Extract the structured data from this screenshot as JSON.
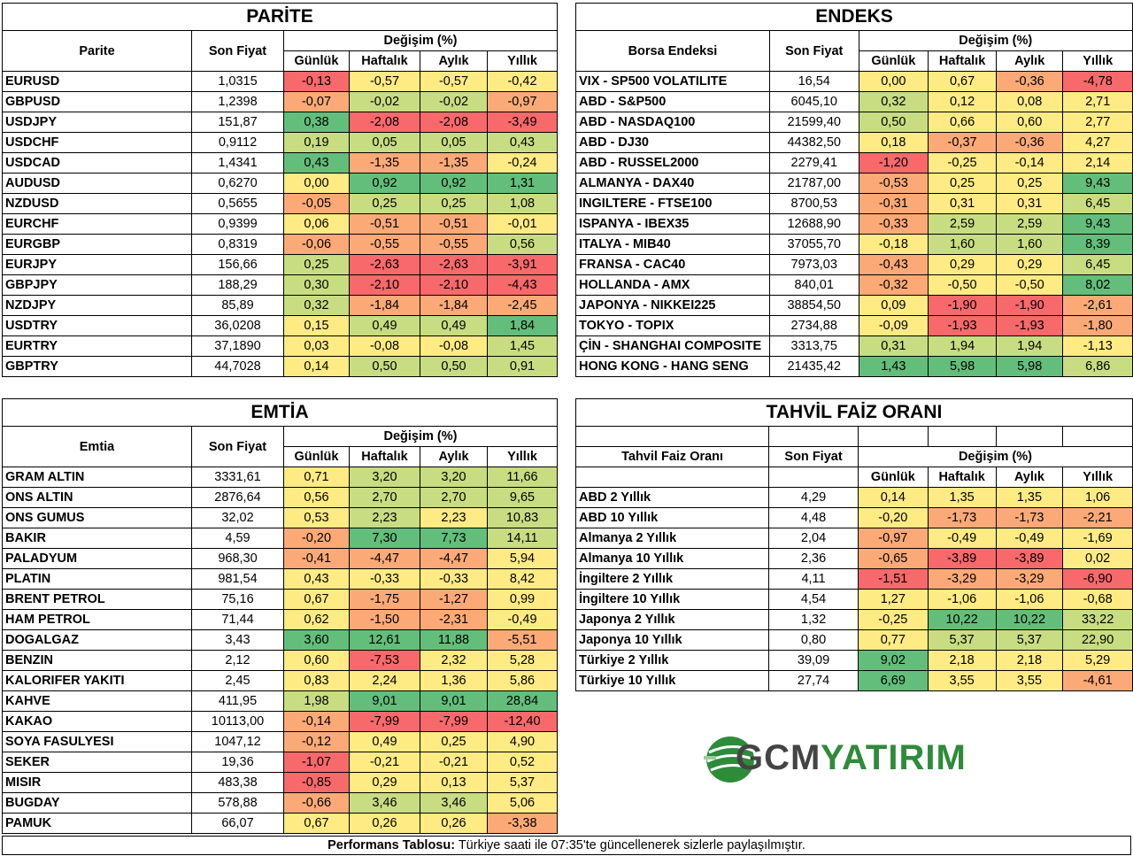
{
  "colors": {
    "red": "#f8696b",
    "orange": "#fbaa77",
    "yellow": "#ffeb84",
    "lightgreen": "#c8dd81",
    "green": "#63be7b"
  },
  "headers": {
    "son_fiyat": "Son Fiyat",
    "degisim": "Değişim (%)",
    "gunluk": "Günlük",
    "haftalik": "Haftalık",
    "aylik": "Aylık",
    "yillik": "Yıllık"
  },
  "parite": {
    "title": "PARİTE",
    "col_name": "Parite",
    "rows": [
      [
        "EURUSD",
        "1,0315",
        "-0,13",
        "-0,57",
        "-0,57",
        "-0,42"
      ],
      [
        "GBPUSD",
        "1,2398",
        "-0,07",
        "-0,02",
        "-0,02",
        "-0,97"
      ],
      [
        "USDJPY",
        "151,87",
        "0,38",
        "-2,08",
        "-2,08",
        "-3,49"
      ],
      [
        "USDCHF",
        "0,9112",
        "0,19",
        "0,05",
        "0,05",
        "0,43"
      ],
      [
        "USDCAD",
        "1,4341",
        "0,43",
        "-1,35",
        "-1,35",
        "-0,24"
      ],
      [
        "AUDUSD",
        "0,6270",
        "0,00",
        "0,92",
        "0,92",
        "1,31"
      ],
      [
        "NZDUSD",
        "0,5655",
        "-0,05",
        "0,25",
        "0,25",
        "1,08"
      ],
      [
        "EURCHF",
        "0,9399",
        "0,06",
        "-0,51",
        "-0,51",
        "-0,01"
      ],
      [
        "EURGBP",
        "0,8319",
        "-0,06",
        "-0,55",
        "-0,55",
        "0,56"
      ],
      [
        "EURJPY",
        "156,66",
        "0,25",
        "-2,63",
        "-2,63",
        "-3,91"
      ],
      [
        "GBPJPY",
        "188,29",
        "0,30",
        "-2,10",
        "-2,10",
        "-4,43"
      ],
      [
        "NZDJPY",
        "85,89",
        "0,32",
        "-1,84",
        "-1,84",
        "-2,45"
      ],
      [
        "USDTRY",
        "36,0208",
        "0,15",
        "0,49",
        "0,49",
        "1,84"
      ],
      [
        "EURTRY",
        "37,1890",
        "0,03",
        "-0,08",
        "-0,08",
        "1,45"
      ],
      [
        "GBPTRY",
        "44,7028",
        "0,14",
        "0,50",
        "0,50",
        "0,91"
      ]
    ],
    "colors": [
      [
        "red",
        "yellow",
        "yellow",
        "yellow"
      ],
      [
        "orange",
        "lightgreen",
        "lightgreen",
        "orange"
      ],
      [
        "green",
        "red",
        "red",
        "red"
      ],
      [
        "lightgreen",
        "lightgreen",
        "lightgreen",
        "lightgreen"
      ],
      [
        "green",
        "orange",
        "orange",
        "yellow"
      ],
      [
        "yellow",
        "green",
        "green",
        "green"
      ],
      [
        "orange",
        "lightgreen",
        "lightgreen",
        "lightgreen"
      ],
      [
        "yellow",
        "orange",
        "orange",
        "yellow"
      ],
      [
        "orange",
        "orange",
        "orange",
        "lightgreen"
      ],
      [
        "lightgreen",
        "red",
        "red",
        "red"
      ],
      [
        "lightgreen",
        "red",
        "red",
        "red"
      ],
      [
        "lightgreen",
        "orange",
        "orange",
        "orange"
      ],
      [
        "yellow",
        "lightgreen",
        "lightgreen",
        "green"
      ],
      [
        "yellow",
        "yellow",
        "yellow",
        "lightgreen"
      ],
      [
        "yellow",
        "lightgreen",
        "lightgreen",
        "lightgreen"
      ]
    ]
  },
  "endeks": {
    "title": "ENDEKS",
    "col_name": "Borsa Endeksi",
    "rows": [
      [
        "VIX  - SP500 VOLATILITE",
        "16,54",
        "0,00",
        "0,67",
        "-0,36",
        "-4,78"
      ],
      [
        "ABD - S&P500",
        "6045,10",
        "0,32",
        "0,12",
        "0,08",
        "2,71"
      ],
      [
        "ABD - NASDAQ100",
        "21599,40",
        "0,50",
        "0,66",
        "0,60",
        "2,77"
      ],
      [
        "ABD - DJ30",
        "44382,50",
        "0,18",
        "-0,37",
        "-0,36",
        "4,27"
      ],
      [
        "ABD - RUSSEL2000",
        "2279,41",
        "-1,20",
        "-0,25",
        "-0,14",
        "2,14"
      ],
      [
        "ALMANYA - DAX40",
        "21787,00",
        "-0,53",
        "0,25",
        "0,25",
        "9,43"
      ],
      [
        "INGILTERE - FTSE100",
        "8700,53",
        "-0,31",
        "0,31",
        "0,31",
        "6,45"
      ],
      [
        "ISPANYA - IBEX35",
        "12688,90",
        "-0,33",
        "2,59",
        "2,59",
        "9,43"
      ],
      [
        "ITALYA - MIB40",
        "37055,70",
        "-0,18",
        "1,60",
        "1,60",
        "8,39"
      ],
      [
        "FRANSA - CAC40",
        "7973,03",
        "-0,43",
        "0,29",
        "0,29",
        "6,45"
      ],
      [
        "HOLLANDA - AMX",
        "840,01",
        "-0,32",
        "-0,50",
        "-0,50",
        "8,02"
      ],
      [
        "JAPONYA - NIKKEI225",
        "38854,50",
        "0,09",
        "-1,90",
        "-1,90",
        "-2,61"
      ],
      [
        "TOKYO - TOPIX",
        "2734,88",
        "-0,09",
        "-1,93",
        "-1,93",
        "-1,80"
      ],
      [
        "ÇİN - SHANGHAI COMPOSITE",
        "3313,75",
        "0,31",
        "1,94",
        "1,94",
        "-1,13"
      ],
      [
        "HONG KONG - HANG SENG",
        "21435,42",
        "1,43",
        "5,98",
        "5,98",
        "6,86"
      ]
    ],
    "colors": [
      [
        "yellow",
        "yellow",
        "orange",
        "red"
      ],
      [
        "lightgreen",
        "yellow",
        "yellow",
        "yellow"
      ],
      [
        "lightgreen",
        "yellow",
        "yellow",
        "yellow"
      ],
      [
        "yellow",
        "orange",
        "orange",
        "yellow"
      ],
      [
        "red",
        "yellow",
        "yellow",
        "yellow"
      ],
      [
        "orange",
        "yellow",
        "yellow",
        "green"
      ],
      [
        "orange",
        "yellow",
        "yellow",
        "lightgreen"
      ],
      [
        "orange",
        "lightgreen",
        "lightgreen",
        "green"
      ],
      [
        "yellow",
        "lightgreen",
        "lightgreen",
        "green"
      ],
      [
        "orange",
        "yellow",
        "yellow",
        "lightgreen"
      ],
      [
        "orange",
        "yellow",
        "yellow",
        "green"
      ],
      [
        "yellow",
        "red",
        "red",
        "orange"
      ],
      [
        "yellow",
        "red",
        "red",
        "orange"
      ],
      [
        "lightgreen",
        "lightgreen",
        "lightgreen",
        "yellow"
      ],
      [
        "green",
        "green",
        "green",
        "lightgreen"
      ]
    ]
  },
  "emtia": {
    "title": "EMTİA",
    "col_name": "Emtia",
    "rows": [
      [
        "GRAM ALTIN",
        "3331,61",
        "0,71",
        "3,20",
        "3,20",
        "11,66"
      ],
      [
        "ONS ALTIN",
        "2876,64",
        "0,56",
        "2,70",
        "2,70",
        "9,65"
      ],
      [
        "ONS GUMUS",
        "32,02",
        "0,53",
        "2,23",
        "2,23",
        "10,83"
      ],
      [
        "BAKIR",
        "4,59",
        "-0,20",
        "7,30",
        "7,73",
        "14,11"
      ],
      [
        "PALADYUM",
        "968,30",
        "-0,41",
        "-4,47",
        "-4,47",
        "5,94"
      ],
      [
        "PLATIN",
        "981,54",
        "0,43",
        "-0,33",
        "-0,33",
        "8,42"
      ],
      [
        "BRENT PETROL",
        "75,16",
        "0,67",
        "-1,75",
        "-1,27",
        "0,99"
      ],
      [
        "HAM PETROL",
        "71,44",
        "0,62",
        "-1,50",
        "-2,31",
        "-0,49"
      ],
      [
        "DOGALGAZ",
        "3,43",
        "3,60",
        "12,61",
        "11,88",
        "-5,51"
      ],
      [
        "BENZIN",
        "2,12",
        "0,60",
        "-7,53",
        "2,32",
        "5,28"
      ],
      [
        "KALORIFER YAKITI",
        "2,45",
        "0,83",
        "2,24",
        "1,36",
        "5,86"
      ],
      [
        "KAHVE",
        "411,95",
        "1,98",
        "9,01",
        "9,01",
        "28,84"
      ],
      [
        "KAKAO",
        "10113,00",
        "-0,14",
        "-7,99",
        "-7,99",
        "-12,40"
      ],
      [
        "SOYA FASULYESI",
        "1047,12",
        "-0,12",
        "0,49",
        "0,25",
        "4,90"
      ],
      [
        "SEKER",
        "19,36",
        "-1,07",
        "-0,21",
        "-0,21",
        "0,52"
      ],
      [
        "MISIR",
        "483,38",
        "-0,85",
        "0,29",
        "0,13",
        "5,37"
      ],
      [
        "BUGDAY",
        "578,88",
        "-0,66",
        "3,46",
        "3,46",
        "5,06"
      ],
      [
        "PAMUK",
        "66,07",
        "0,67",
        "0,26",
        "0,26",
        "-3,38"
      ]
    ],
    "colors": [
      [
        "yellow",
        "lightgreen",
        "lightgreen",
        "lightgreen"
      ],
      [
        "yellow",
        "lightgreen",
        "lightgreen",
        "lightgreen"
      ],
      [
        "yellow",
        "lightgreen",
        "yellow",
        "lightgreen"
      ],
      [
        "orange",
        "green",
        "green",
        "lightgreen"
      ],
      [
        "orange",
        "orange",
        "orange",
        "yellow"
      ],
      [
        "yellow",
        "yellow",
        "yellow",
        "yellow"
      ],
      [
        "yellow",
        "orange",
        "orange",
        "yellow"
      ],
      [
        "yellow",
        "orange",
        "orange",
        "yellow"
      ],
      [
        "green",
        "green",
        "green",
        "orange"
      ],
      [
        "yellow",
        "red",
        "yellow",
        "yellow"
      ],
      [
        "yellow",
        "yellow",
        "yellow",
        "yellow"
      ],
      [
        "lightgreen",
        "green",
        "green",
        "green"
      ],
      [
        "orange",
        "red",
        "red",
        "red"
      ],
      [
        "orange",
        "yellow",
        "yellow",
        "yellow"
      ],
      [
        "red",
        "yellow",
        "yellow",
        "yellow"
      ],
      [
        "red",
        "yellow",
        "yellow",
        "yellow"
      ],
      [
        "orange",
        "lightgreen",
        "lightgreen",
        "yellow"
      ],
      [
        "yellow",
        "yellow",
        "yellow",
        "orange"
      ]
    ]
  },
  "tahvil": {
    "title": "TAHVİL FAİZ ORANI",
    "col_name": "Tahvil Faiz Oranı",
    "rows": [
      [
        "ABD 2 Yıllık",
        "4,29",
        "0,14",
        "1,35",
        "1,35",
        "1,06"
      ],
      [
        "ABD 10 Yıllık",
        "4,48",
        "-0,20",
        "-1,73",
        "-1,73",
        "-2,21"
      ],
      [
        "Almanya 2 Yıllık",
        "2,04",
        "-0,97",
        "-0,49",
        "-0,49",
        "-1,69"
      ],
      [
        "Almanya 10 Yıllık",
        "2,36",
        "-0,65",
        "-3,89",
        "-3,89",
        "0,02"
      ],
      [
        "İngiltere 2 Yıllık",
        "4,11",
        "-1,51",
        "-3,29",
        "-3,29",
        "-6,90"
      ],
      [
        "İngiltere 10 Yıllık",
        "4,54",
        "1,27",
        "-1,06",
        "-1,06",
        "-0,68"
      ],
      [
        "Japonya 2 Yıllık",
        "1,32",
        "-0,25",
        "10,22",
        "10,22",
        "33,22"
      ],
      [
        "Japonya 10 Yıllık",
        "0,80",
        "0,77",
        "5,37",
        "5,37",
        "22,90"
      ],
      [
        "Türkiye 2 Yıllık",
        "39,09",
        "9,02",
        "2,18",
        "2,18",
        "5,29"
      ],
      [
        "Türkiye 10 Yıllık",
        "27,74",
        "6,69",
        "3,55",
        "3,55",
        "-4,61"
      ]
    ],
    "colors": [
      [
        "yellow",
        "yellow",
        "yellow",
        "yellow"
      ],
      [
        "yellow",
        "orange",
        "orange",
        "orange"
      ],
      [
        "orange",
        "yellow",
        "yellow",
        "yellow"
      ],
      [
        "orange",
        "red",
        "red",
        "yellow"
      ],
      [
        "red",
        "orange",
        "orange",
        "red"
      ],
      [
        "yellow",
        "yellow",
        "yellow",
        "yellow"
      ],
      [
        "yellow",
        "green",
        "green",
        "lightgreen"
      ],
      [
        "yellow",
        "lightgreen",
        "lightgreen",
        "lightgreen"
      ],
      [
        "green",
        "yellow",
        "yellow",
        "yellow"
      ],
      [
        "green",
        "yellow",
        "yellow",
        "orange"
      ]
    ]
  },
  "logo": {
    "text_gcm": "GCM",
    "text_yatirim": "YATIRIM"
  },
  "footer": {
    "bold": "Performans Tablosu:",
    "text": " Türkiye saati ile 07:35'te güncellenerek sizlerle paylaşılmıştır."
  }
}
